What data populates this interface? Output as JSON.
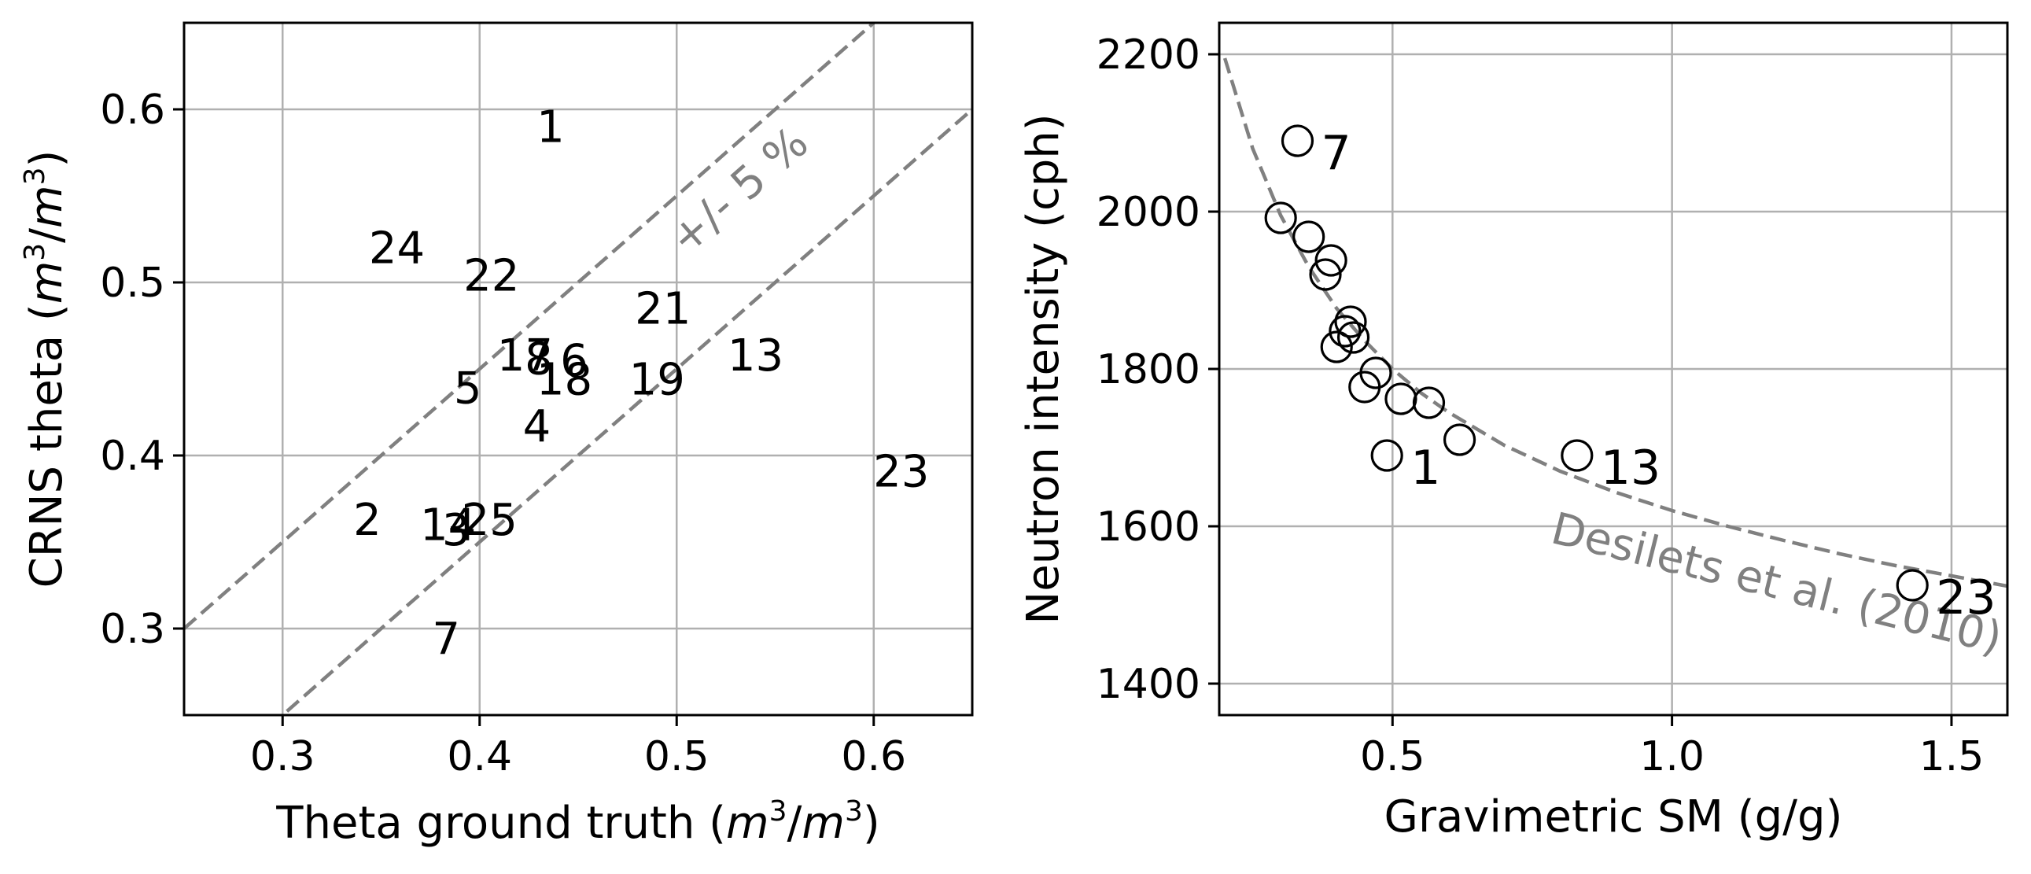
{
  "chart_data": [
    {
      "type": "scatter",
      "title": "",
      "xlabel": "Theta ground truth (m³/m³)",
      "ylabel": "CRNS theta (m³/m³)",
      "xlim": [
        0.25,
        0.65
      ],
      "ylim": [
        0.25,
        0.65
      ],
      "xticks": [
        "0.3",
        "0.4",
        "0.5",
        "0.6"
      ],
      "yticks": [
        "0.3",
        "0.4",
        "0.5",
        "0.6"
      ],
      "grid": true,
      "marker": "text",
      "points": [
        {
          "label": "1",
          "x": 0.436,
          "y": 0.588
        },
        {
          "label": "24",
          "x": 0.358,
          "y": 0.518
        },
        {
          "label": "22",
          "x": 0.406,
          "y": 0.502
        },
        {
          "label": "21",
          "x": 0.493,
          "y": 0.483
        },
        {
          "label": "17",
          "x": 0.423,
          "y": 0.456
        },
        {
          "label": "8",
          "x": 0.43,
          "y": 0.454
        },
        {
          "label": "6",
          "x": 0.448,
          "y": 0.453
        },
        {
          "label": "13",
          "x": 0.54,
          "y": 0.456
        },
        {
          "label": "18",
          "x": 0.443,
          "y": 0.442
        },
        {
          "label": "19",
          "x": 0.49,
          "y": 0.442
        },
        {
          "label": "5",
          "x": 0.394,
          "y": 0.437
        },
        {
          "label": "4",
          "x": 0.429,
          "y": 0.415
        },
        {
          "label": "23",
          "x": 0.614,
          "y": 0.389
        },
        {
          "label": "2",
          "x": 0.343,
          "y": 0.361
        },
        {
          "label": "25",
          "x": 0.405,
          "y": 0.361
        },
        {
          "label": "14",
          "x": 0.384,
          "y": 0.358
        },
        {
          "label": "3",
          "x": 0.388,
          "y": 0.355
        },
        {
          "label": "7",
          "x": 0.383,
          "y": 0.292
        }
      ],
      "lines": [
        {
          "name": "+5%",
          "slope": 1,
          "intercept": 0.05,
          "style": "dashed",
          "color": "#808080"
        },
        {
          "name": "-5%",
          "slope": 1,
          "intercept": -0.05,
          "style": "dashed",
          "color": "#808080"
        }
      ],
      "annotation": "+/- 5 %"
    },
    {
      "type": "scatter",
      "title": "",
      "xlabel": "Gravimetric SM (g/g)",
      "ylabel": "Neutron intensity (cph)",
      "xlim": [
        0.19,
        1.6
      ],
      "ylim": [
        1360,
        2240
      ],
      "xticks": [
        "0.5",
        "1.0",
        "1.5"
      ],
      "yticks": [
        "1400",
        "1600",
        "1800",
        "2000",
        "2200"
      ],
      "grid": true,
      "marker": "open-circle",
      "points": [
        {
          "x": 0.33,
          "y": 2090,
          "label": "7"
        },
        {
          "x": 0.3,
          "y": 1992
        },
        {
          "x": 0.35,
          "y": 1968
        },
        {
          "x": 0.39,
          "y": 1938
        },
        {
          "x": 0.38,
          "y": 1920
        },
        {
          "x": 0.425,
          "y": 1860
        },
        {
          "x": 0.415,
          "y": 1848
        },
        {
          "x": 0.43,
          "y": 1840
        },
        {
          "x": 0.4,
          "y": 1828
        },
        {
          "x": 0.47,
          "y": 1795
        },
        {
          "x": 0.45,
          "y": 1777
        },
        {
          "x": 0.515,
          "y": 1762
        },
        {
          "x": 0.565,
          "y": 1757
        },
        {
          "x": 0.62,
          "y": 1710
        },
        {
          "x": 0.49,
          "y": 1690,
          "label": "1"
        },
        {
          "x": 0.83,
          "y": 1690,
          "label": "13"
        },
        {
          "x": 1.43,
          "y": 1525,
          "label": "23"
        }
      ],
      "curve": {
        "name": "Desilets et al. (2010)",
        "style": "dashed",
        "color": "#808080",
        "x": [
          0.2,
          0.25,
          0.3,
          0.35,
          0.4,
          0.45,
          0.5,
          0.55,
          0.6,
          0.7,
          0.8,
          0.9,
          1.0,
          1.1,
          1.2,
          1.3,
          1.4,
          1.5,
          1.6
        ],
        "y": [
          2195,
          2080,
          1995,
          1930,
          1877,
          1836,
          1800,
          1770,
          1745,
          1703,
          1670,
          1643,
          1620,
          1600,
          1582,
          1565,
          1550,
          1537,
          1524
        ]
      }
    }
  ]
}
